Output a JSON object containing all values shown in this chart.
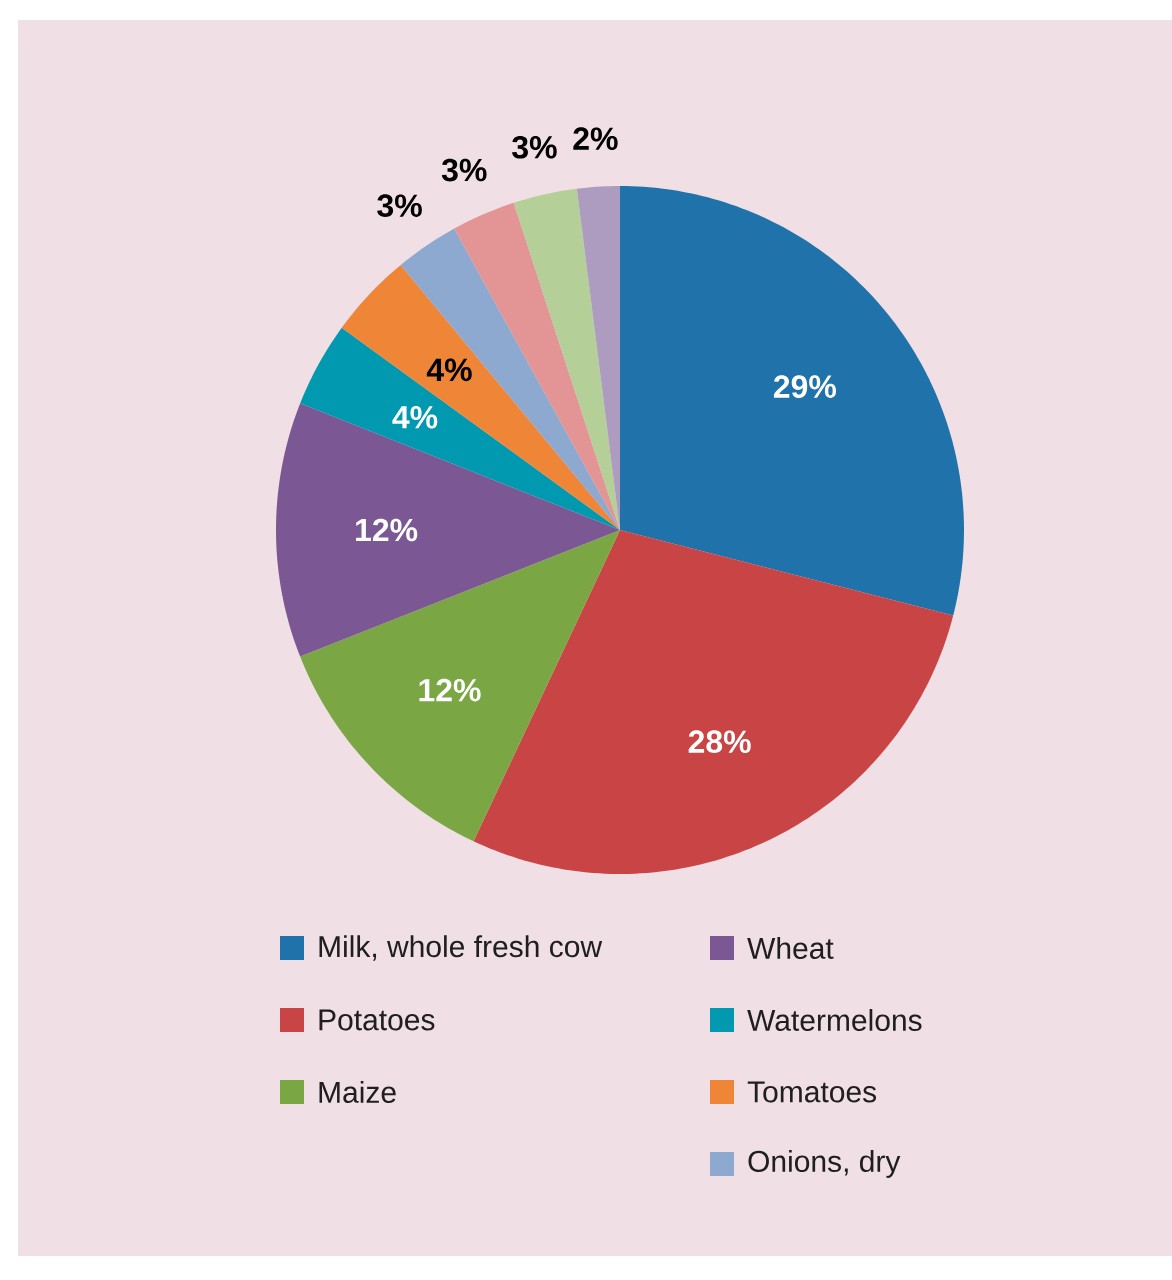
{
  "chart_data": {
    "type": "pie",
    "categories": [
      "Milk, whole fresh cow",
      "Potatoes",
      "Maize",
      "Wheat",
      "Watermelons",
      "Tomatoes",
      "Onions, dry",
      null,
      null,
      null
    ],
    "values": [
      29,
      28,
      12,
      12,
      4,
      4,
      3,
      3,
      3,
      2
    ],
    "value_labels": [
      "29%",
      "28%",
      "12%",
      "12%",
      "4%",
      "4%",
      "3%",
      "3%",
      "3%",
      "2%"
    ],
    "colors": [
      "#1f72aa",
      "#c94545",
      "#7aa744",
      "#7b5893",
      "#0099b0",
      "#ef8536",
      "#8da9d0",
      "#e39494",
      "#b5cf98",
      "#ad9bc0"
    ],
    "legend": "bottom"
  }
}
